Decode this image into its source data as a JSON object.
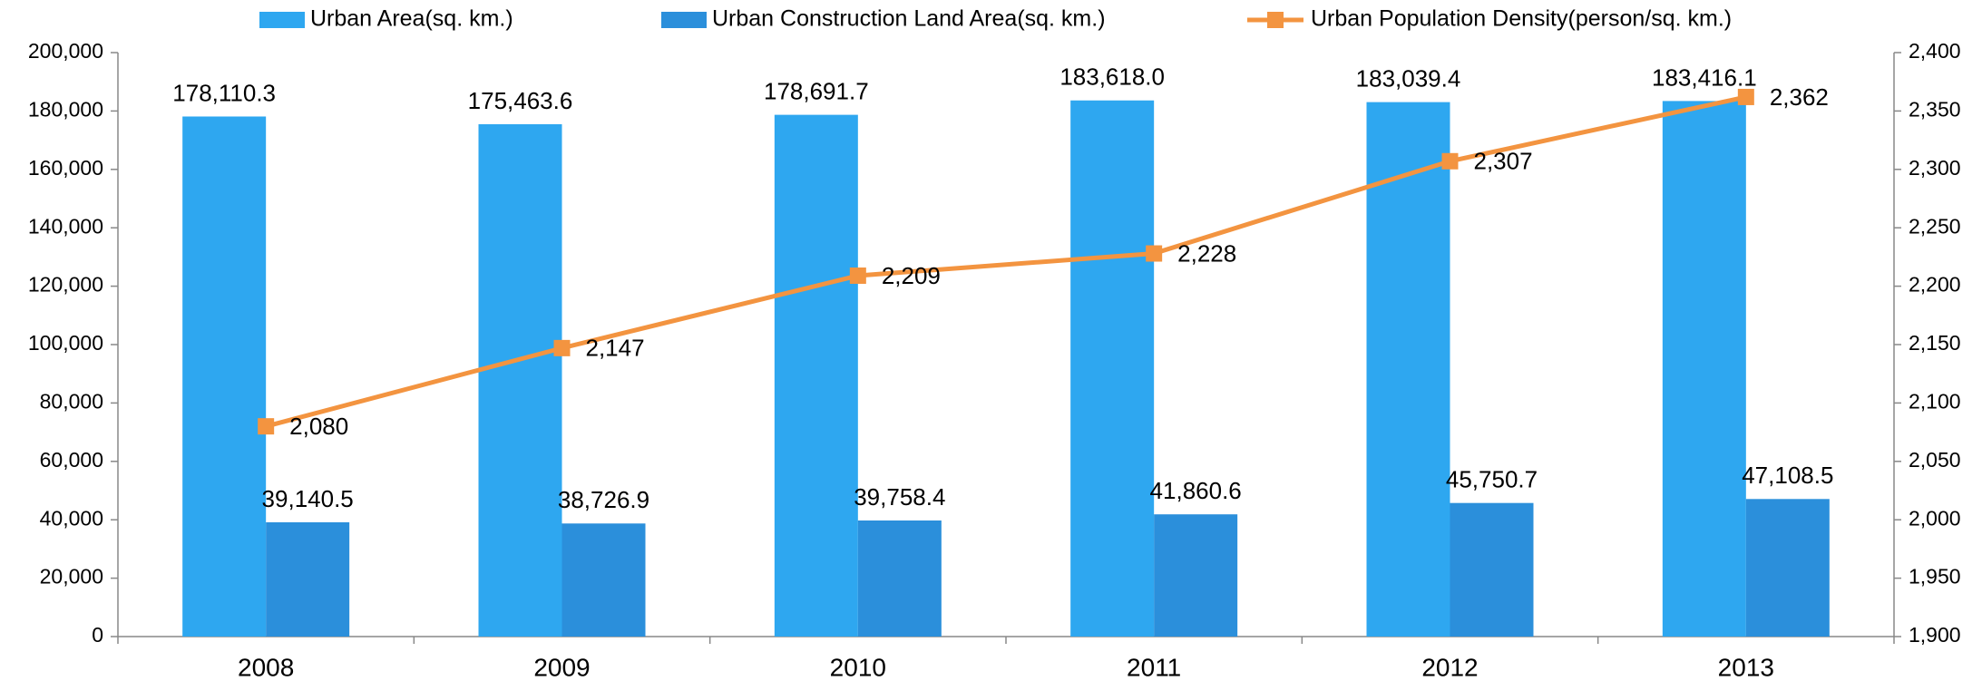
{
  "chart_data": {
    "type": "bar",
    "categories": [
      "2008",
      "2009",
      "2010",
      "2011",
      "2012",
      "2013"
    ],
    "series": [
      {
        "name": "Urban Area(sq. km.)",
        "color": "#2ea7f0",
        "type": "bar",
        "values": [
          178110.3,
          175463.6,
          178691.7,
          183618.0,
          183039.4,
          183416.1
        ],
        "value_labels": [
          "178,110.3",
          "175,463.6",
          "178,691.7",
          "183,618.0",
          "183,039.4",
          "183,416.1"
        ]
      },
      {
        "name": "Urban Construction Land Area(sq. km.)",
        "color": "#2b8fdb",
        "type": "bar",
        "values": [
          39140.5,
          38726.9,
          39758.4,
          41860.6,
          45750.7,
          47108.5
        ],
        "value_labels": [
          "39,140.5",
          "38,726.9",
          "39,758.4",
          "41,860.6",
          "45,750.7",
          "47,108.5"
        ]
      },
      {
        "name": "Urban Population Density(person/sq. km.)",
        "color": "#f39440",
        "type": "line",
        "axis": "y2",
        "values": [
          2080,
          2147,
          2209,
          2228,
          2307,
          2362
        ],
        "value_labels": [
          "2,080",
          "2,147",
          "2,209",
          "2,228",
          "2,307",
          "2,362"
        ]
      }
    ],
    "ylim": [
      0,
      200000
    ],
    "yticks": [
      0,
      {
        "value": 20000,
        "label": "20,000"
      },
      {
        "value": 40000,
        "label": "40,000"
      },
      {
        "value": 60000,
        "label": "60,000"
      },
      {
        "value": 80000,
        "label": "80,000"
      },
      {
        "value": 100000,
        "label": "100,000"
      },
      {
        "value": 120000,
        "label": "120,000"
      },
      {
        "value": 140000,
        "label": "140,000"
      },
      {
        "value": 160000,
        "label": "160,000"
      },
      {
        "value": 180000,
        "label": "180,000"
      },
      {
        "value": 200000,
        "label": "200,000"
      }
    ],
    "y2lim": [
      1900,
      2400
    ],
    "y2ticks": [
      {
        "value": 1900,
        "label": "1,900"
      },
      {
        "value": 1950,
        "label": "1,950"
      },
      {
        "value": 2000,
        "label": "2,000"
      },
      {
        "value": 2050,
        "label": "2,050"
      },
      {
        "value": 2100,
        "label": "2,100"
      },
      {
        "value": 2150,
        "label": "2,150"
      },
      {
        "value": 2200,
        "label": "2,200"
      },
      {
        "value": 2250,
        "label": "2,250"
      },
      {
        "value": 2300,
        "label": "2,300"
      },
      {
        "value": 2350,
        "label": "2,350"
      },
      {
        "value": 2400,
        "label": "2,400"
      }
    ],
    "legend": "top",
    "grid": false
  }
}
